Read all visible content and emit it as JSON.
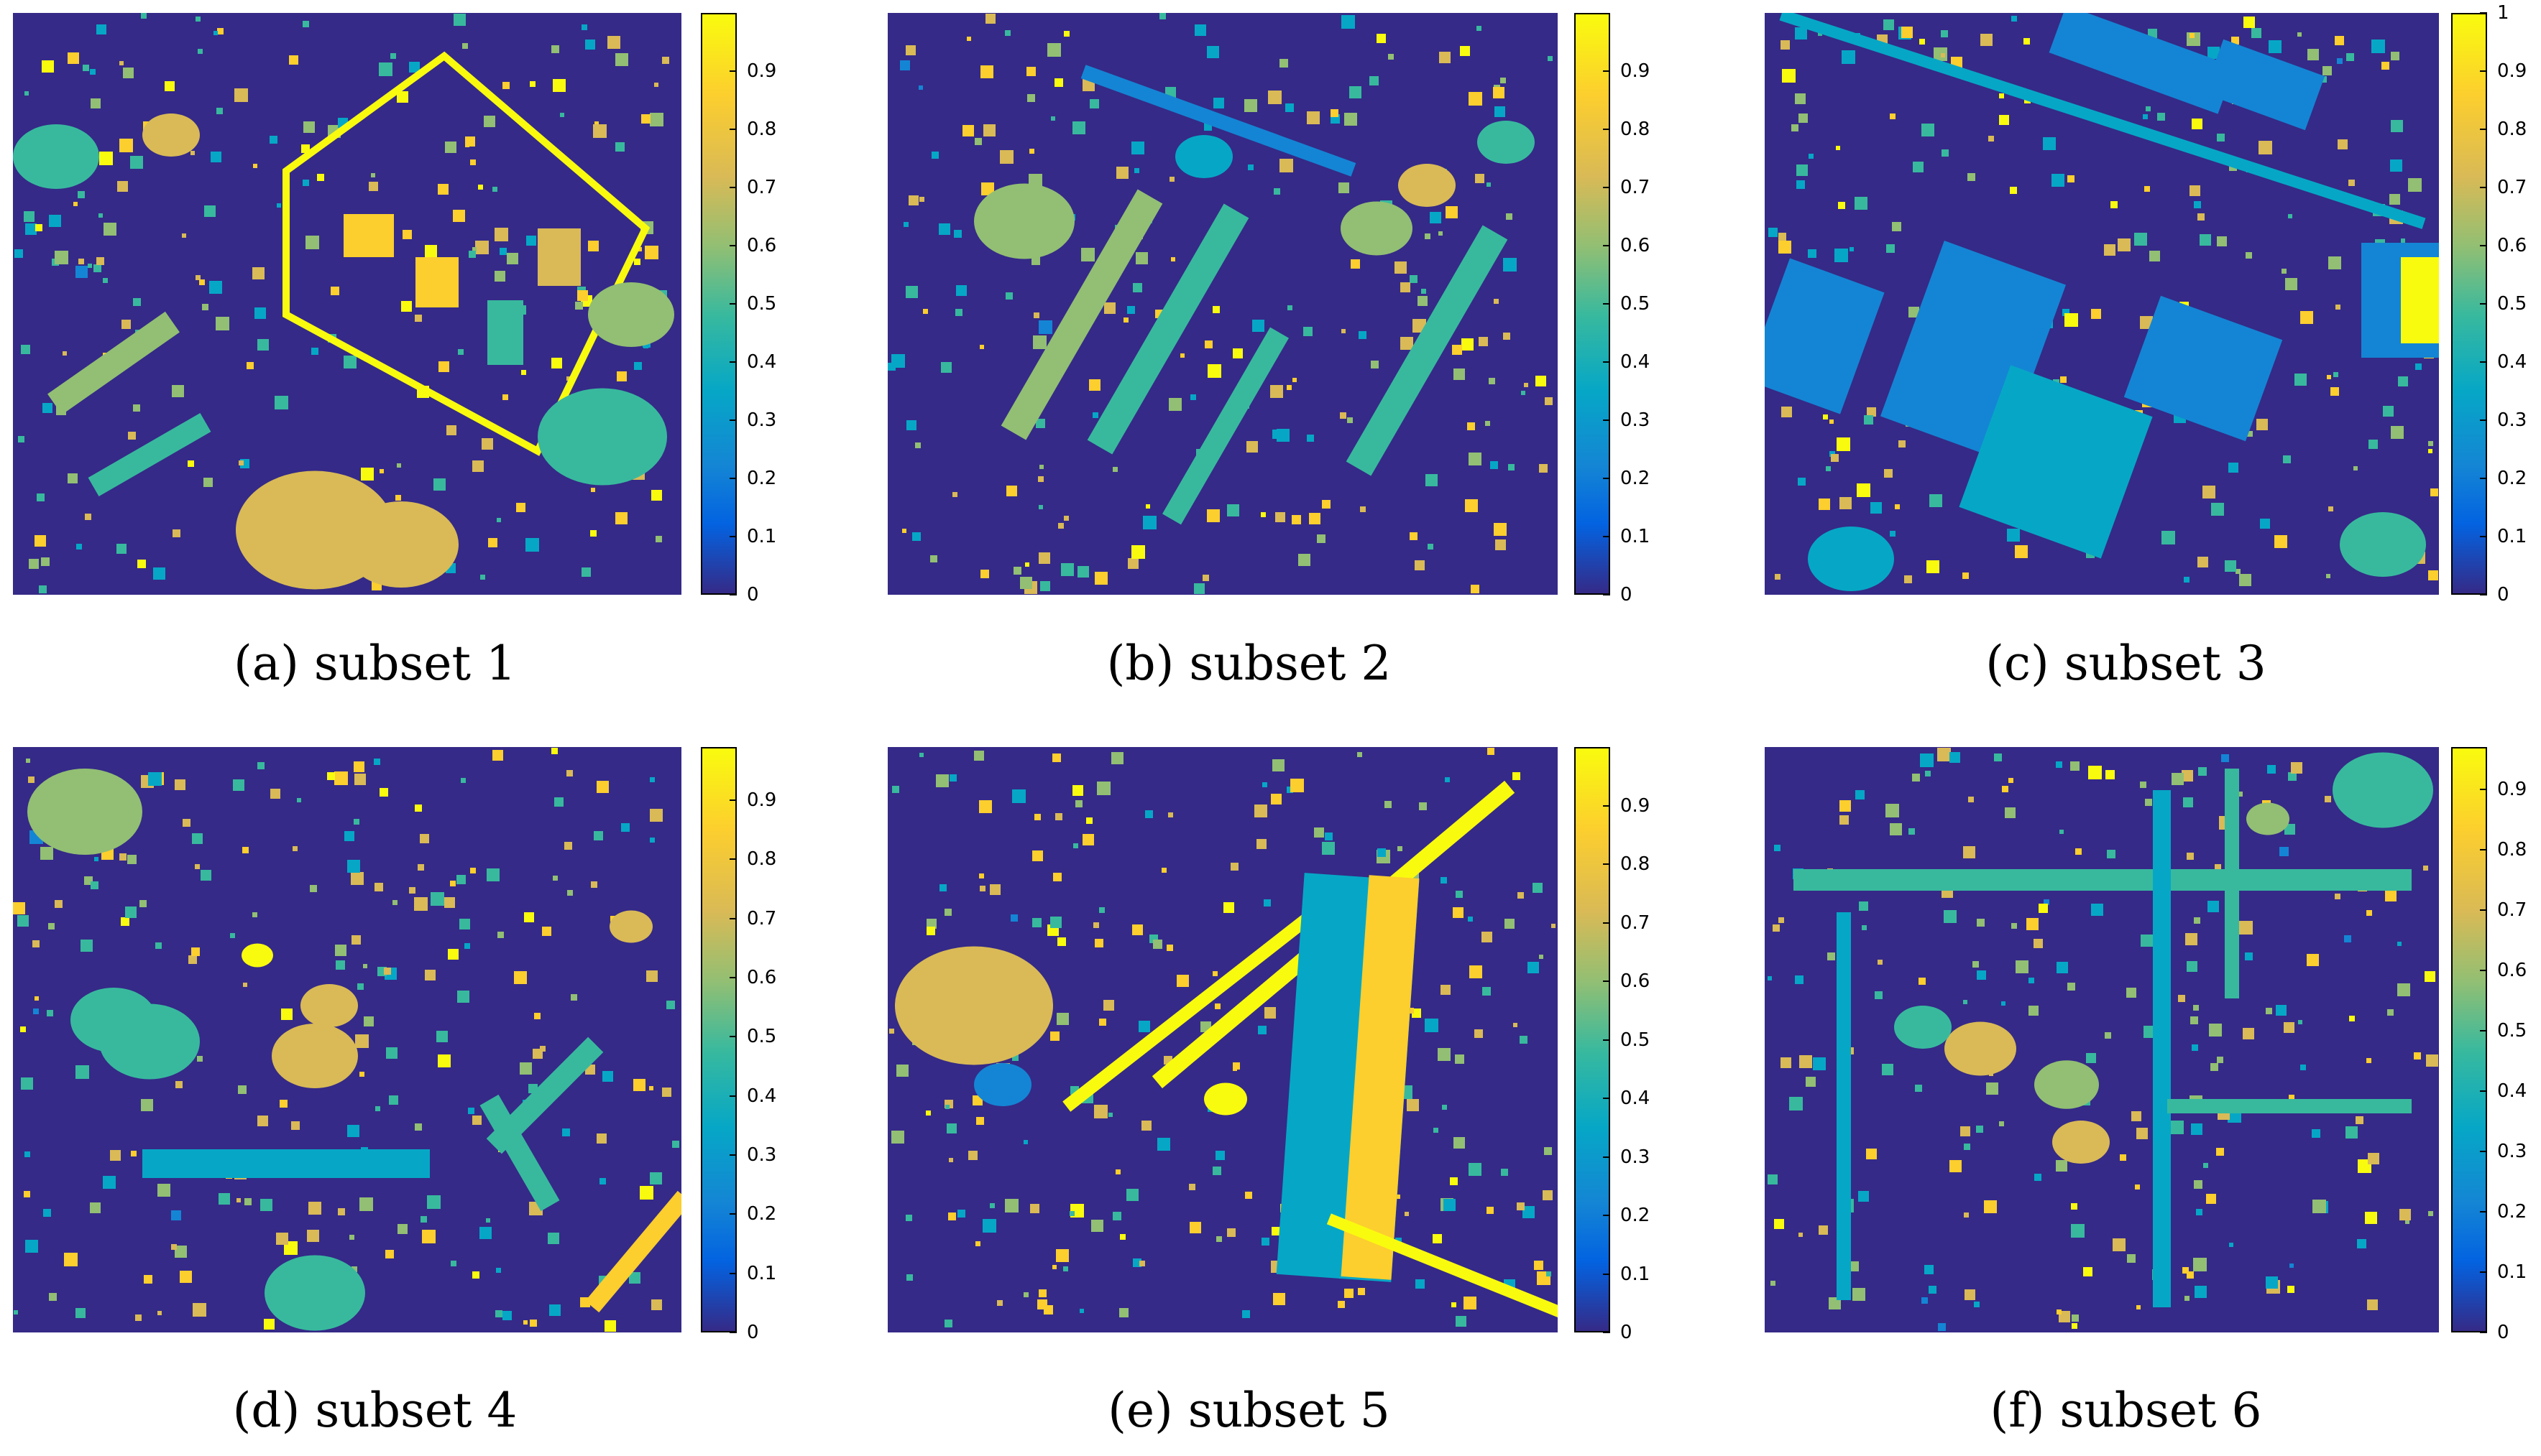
{
  "colors": {
    "background": "#352a87",
    "colormap": [
      "#352a87",
      "#0363e1",
      "#1485d4",
      "#06a7c6",
      "#38b99e",
      "#92bf73",
      "#d9ba56",
      "#fcce2e",
      "#f9fb0e"
    ]
  },
  "chart_data": [
    {
      "type": "heatmap",
      "caption": "(a) subset 1",
      "colorbar": {
        "ticks": [
          "0",
          "0.1",
          "0.2",
          "0.3",
          "0.4",
          "0.5",
          "0.6",
          "0.7",
          "0.8",
          "0.9"
        ],
        "max": 1.0
      }
    },
    {
      "type": "heatmap",
      "caption": "(b) subset 2",
      "colorbar": {
        "ticks": [
          "0",
          "0.1",
          "0.2",
          "0.3",
          "0.4",
          "0.5",
          "0.6",
          "0.7",
          "0.8",
          "0.9"
        ],
        "max": 1.0
      }
    },
    {
      "type": "heatmap",
      "caption": "(c) subset 3",
      "colorbar": {
        "ticks": [
          "0",
          "0.1",
          "0.2",
          "0.3",
          "0.4",
          "0.5",
          "0.6",
          "0.7",
          "0.8",
          "0.9",
          "1"
        ],
        "max": 1.0
      }
    },
    {
      "type": "heatmap",
      "caption": "(d) subset 4",
      "colorbar": {
        "ticks": [
          "0",
          "0.1",
          "0.2",
          "0.3",
          "0.4",
          "0.5",
          "0.6",
          "0.7",
          "0.8",
          "0.9"
        ],
        "max": 0.99
      }
    },
    {
      "type": "heatmap",
      "caption": "(e) subset 5",
      "colorbar": {
        "ticks": [
          "0",
          "0.1",
          "0.2",
          "0.3",
          "0.4",
          "0.5",
          "0.6",
          "0.7",
          "0.8",
          "0.9"
        ],
        "max": 1.0
      }
    },
    {
      "type": "heatmap",
      "caption": "(f) subset 6",
      "colorbar": {
        "ticks": [
          "0",
          "0.1",
          "0.2",
          "0.3",
          "0.4",
          "0.5",
          "0.6",
          "0.7",
          "0.8",
          "0.9"
        ],
        "max": 0.97
      }
    }
  ]
}
